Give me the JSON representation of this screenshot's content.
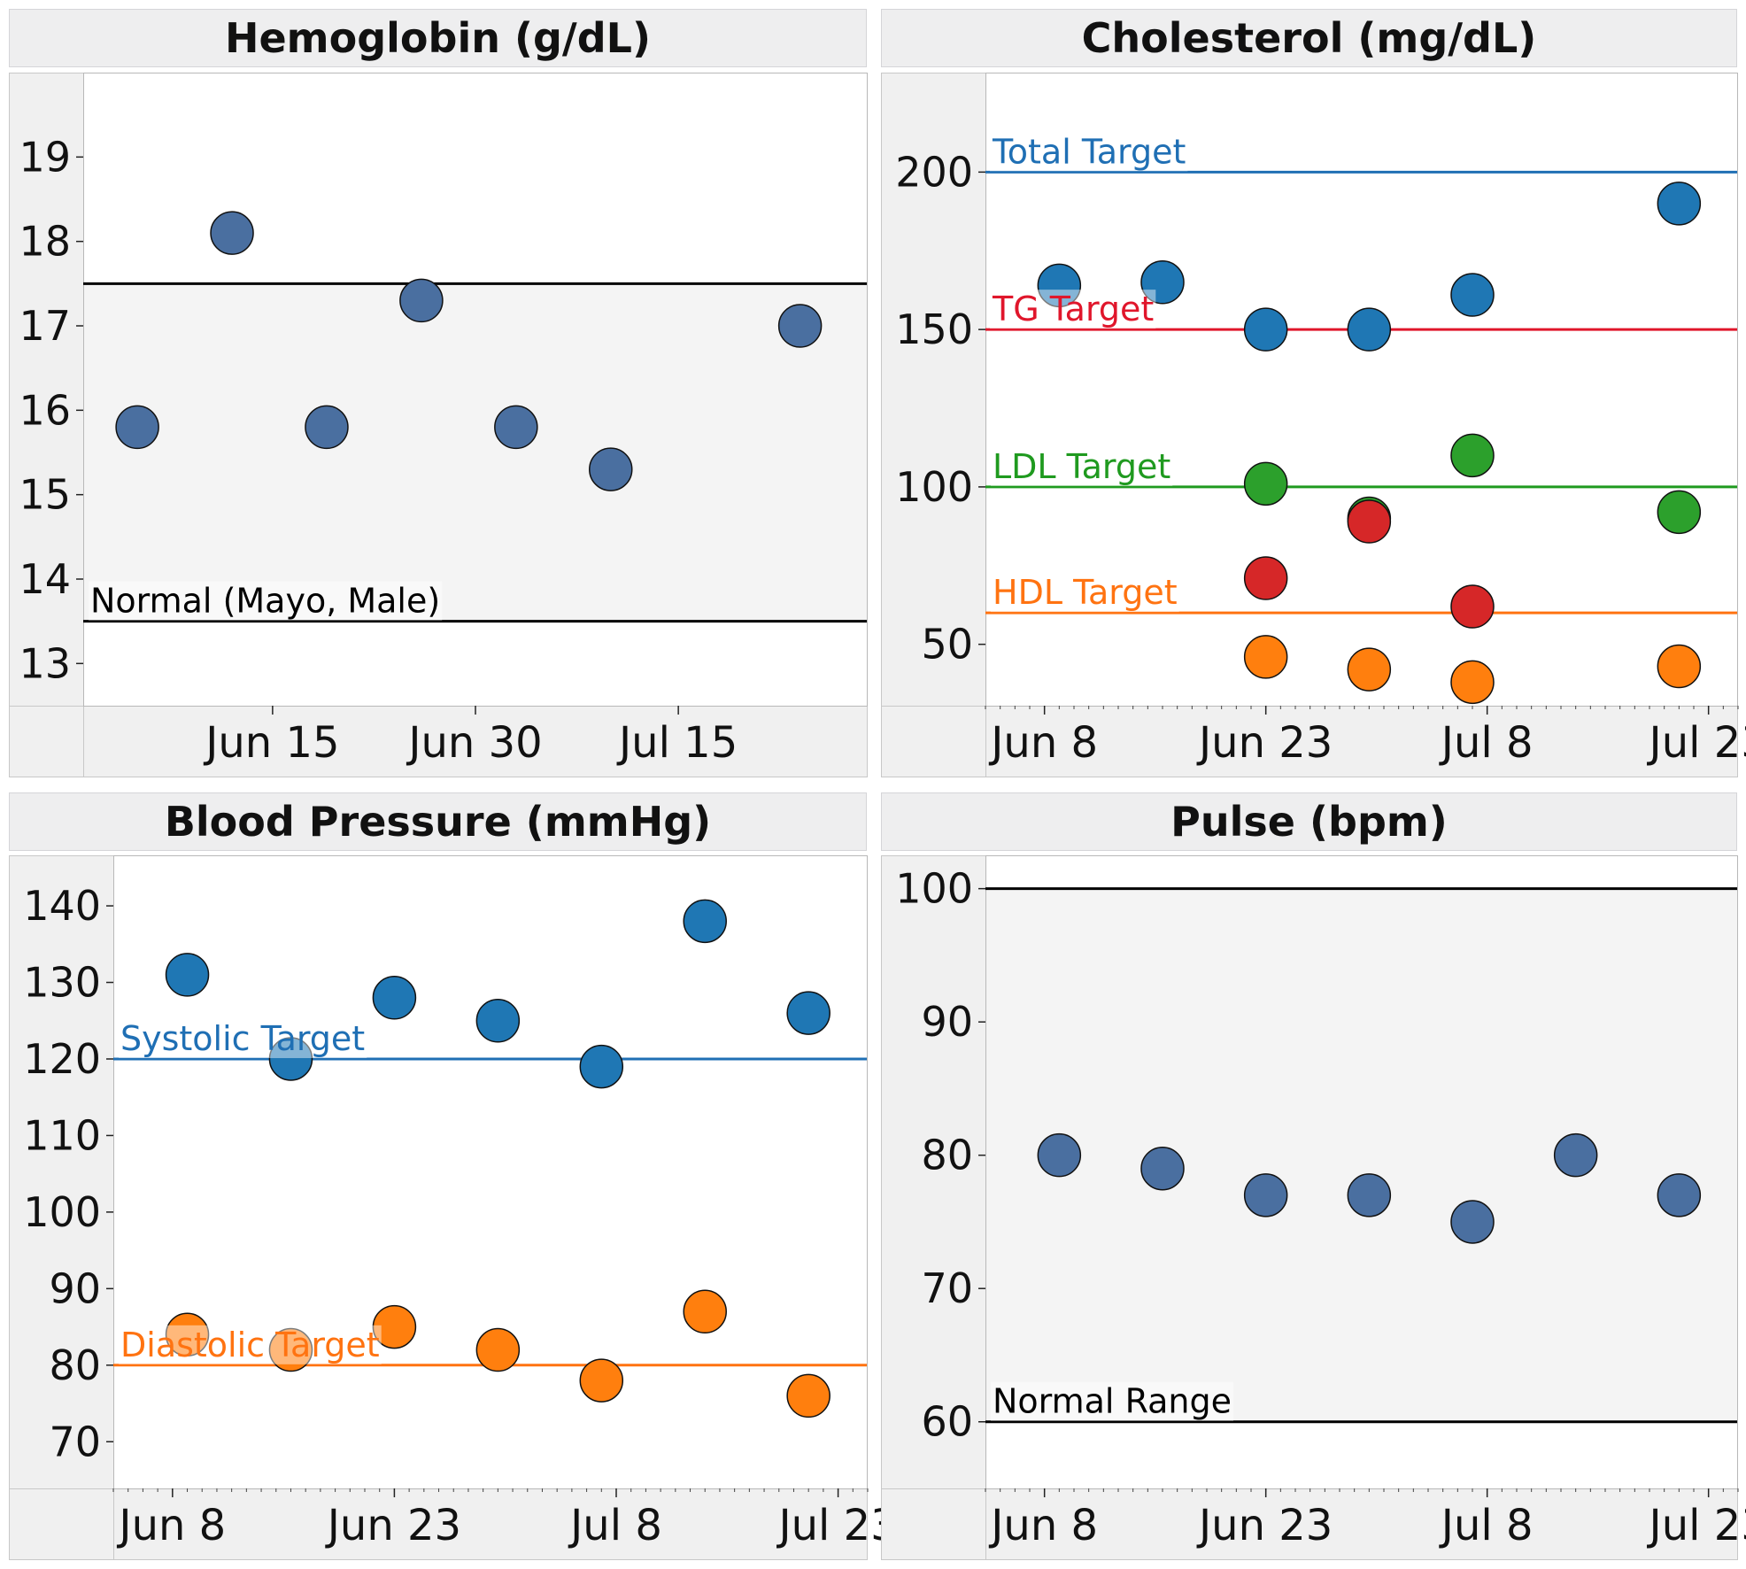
{
  "chart_data": [
    {
      "type": "scatter",
      "title": "Hemoglobin (g/dL)",
      "xlabel": "",
      "ylabel": "",
      "x_ticks": [
        "Jun 15",
        "Jun 30",
        "Jul 15"
      ],
      "y_ticks": [
        13,
        14,
        15,
        16,
        17,
        18,
        19
      ],
      "series": [
        {
          "color": "#4a6fa0",
          "points": [
            {
              "x": "Jun 5",
              "y": 15.8
            },
            {
              "x": "Jun 12",
              "y": 18.1
            },
            {
              "x": "Jun 19",
              "y": 15.8
            },
            {
              "x": "Jun 26",
              "y": 17.3
            },
            {
              "x": "Jul 3",
              "y": 15.8
            },
            {
              "x": "Jul 10",
              "y": 15.3
            },
            {
              "x": "Jul 24",
              "y": 17.0
            }
          ]
        }
      ],
      "reference_lines": [
        {
          "y": 17.5,
          "label": "",
          "color": "#000000"
        },
        {
          "y": 13.5,
          "label": "Normal (Mayo, Male)",
          "color": "#000000"
        }
      ],
      "shaded_band": {
        "from": 13.5,
        "to": 17.5,
        "color": "#f4f4f4"
      }
    },
    {
      "type": "scatter",
      "title": "Cholesterol (mg/dL)",
      "xlabel": "",
      "ylabel": "",
      "x_ticks": [
        "Jun 8",
        "Jun 23",
        "Jul 8",
        "Jul 23"
      ],
      "y_ticks": [
        50,
        100,
        150,
        200
      ],
      "series": [
        {
          "color": "#1f77b4",
          "points": [
            {
              "x": "Jun 9",
              "y": 164
            },
            {
              "x": "Jun 16",
              "y": 165
            },
            {
              "x": "Jun 23",
              "y": 150
            },
            {
              "x": "Jun 30",
              "y": 150
            },
            {
              "x": "Jul 7",
              "y": 161
            },
            {
              "x": "Jul 21",
              "y": 190
            }
          ]
        },
        {
          "color": "#2ca02c",
          "points": [
            {
              "x": "Jun 23",
              "y": 101
            },
            {
              "x": "Jun 30",
              "y": 90
            },
            {
              "x": "Jul 7",
              "y": 110
            },
            {
              "x": "Jul 21",
              "y": 92
            }
          ]
        },
        {
          "color": "#d62728",
          "points": [
            {
              "x": "Jun 23",
              "y": 71
            },
            {
              "x": "Jun 30",
              "y": 89
            },
            {
              "x": "Jul 7",
              "y": 62
            }
          ]
        },
        {
          "color": "#ff7f0e",
          "points": [
            {
              "x": "Jun 23",
              "y": 46
            },
            {
              "x": "Jun 30",
              "y": 42
            },
            {
              "x": "Jul 7",
              "y": 38
            },
            {
              "x": "Jul 21",
              "y": 43
            }
          ]
        }
      ],
      "reference_lines": [
        {
          "y": 200,
          "label": "Total Target",
          "color": "#1f6fb4"
        },
        {
          "y": 150,
          "label": "TG Target",
          "color": "#e0162b"
        },
        {
          "y": 100,
          "label": "LDL Target",
          "color": "#1f9a1f"
        },
        {
          "y": 60,
          "label": "HDL Target",
          "color": "#ff7311"
        }
      ]
    },
    {
      "type": "scatter",
      "title": "Blood Pressure (mmHg)",
      "xlabel": "",
      "ylabel": "",
      "x_ticks": [
        "Jun 8",
        "Jun 23",
        "Jul 8",
        "Jul 23"
      ],
      "y_ticks": [
        70,
        80,
        90,
        100,
        110,
        120,
        130,
        140
      ],
      "series": [
        {
          "color": "#1f77b4",
          "points": [
            {
              "x": "Jun 9",
              "y": 131
            },
            {
              "x": "Jun 16",
              "y": 120
            },
            {
              "x": "Jun 23",
              "y": 128
            },
            {
              "x": "Jun 30",
              "y": 125
            },
            {
              "x": "Jul 7",
              "y": 119
            },
            {
              "x": "Jul 14",
              "y": 138
            },
            {
              "x": "Jul 21",
              "y": 126
            }
          ]
        },
        {
          "color": "#ff7f0e",
          "points": [
            {
              "x": "Jun 9",
              "y": 84
            },
            {
              "x": "Jun 16",
              "y": 82
            },
            {
              "x": "Jun 23",
              "y": 85
            },
            {
              "x": "Jun 30",
              "y": 82
            },
            {
              "x": "Jul 7",
              "y": 78
            },
            {
              "x": "Jul 14",
              "y": 87
            },
            {
              "x": "Jul 21",
              "y": 76
            }
          ]
        }
      ],
      "reference_lines": [
        {
          "y": 120,
          "label": "Systolic Target",
          "color": "#1f6fb4"
        },
        {
          "y": 80,
          "label": "Diastolic Target",
          "color": "#ff7311"
        }
      ]
    },
    {
      "type": "scatter",
      "title": "Pulse (bpm)",
      "xlabel": "",
      "ylabel": "",
      "x_ticks": [
        "Jun 8",
        "Jun 23",
        "Jul 8",
        "Jul 23"
      ],
      "y_ticks": [
        60,
        70,
        80,
        90,
        100
      ],
      "series": [
        {
          "color": "#4a6fa0",
          "points": [
            {
              "x": "Jun 9",
              "y": 80
            },
            {
              "x": "Jun 16",
              "y": 79
            },
            {
              "x": "Jun 23",
              "y": 77
            },
            {
              "x": "Jun 30",
              "y": 77
            },
            {
              "x": "Jul 7",
              "y": 75
            },
            {
              "x": "Jul 14",
              "y": 80
            },
            {
              "x": "Jul 21",
              "y": 77
            }
          ]
        }
      ],
      "reference_lines": [
        {
          "y": 100,
          "label": "",
          "color": "#000000"
        },
        {
          "y": 60,
          "label": "Normal Range",
          "color": "#000000"
        }
      ],
      "shaded_band": {
        "from": 60,
        "to": 100,
        "color": "#f4f4f4"
      }
    }
  ]
}
